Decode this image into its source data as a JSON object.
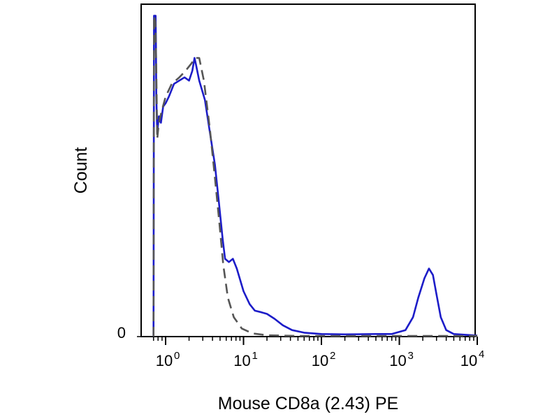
{
  "chart_data": {
    "type": "line",
    "xlabel": "Mouse CD8a (2.43) PE",
    "ylabel": "Count",
    "x_scale": "log",
    "xlim": [
      0.7,
      10000
    ],
    "ylim": [
      0,
      1
    ],
    "grid": false,
    "legend": "none",
    "x_ticks": [
      {
        "base": "10",
        "exp": "0",
        "value": 1
      },
      {
        "base": "10",
        "exp": "1",
        "value": 10
      },
      {
        "base": "10",
        "exp": "2",
        "value": 100
      },
      {
        "base": "10",
        "exp": "3",
        "value": 1000
      },
      {
        "base": "10",
        "exp": "4",
        "value": 10000
      }
    ],
    "y_ticks": [
      {
        "label": "0",
        "value": 0
      }
    ],
    "series": [
      {
        "style": "solid",
        "color": "#1c1cc8",
        "points": [
          [
            0.7,
            0.0
          ],
          [
            0.71,
            0.99
          ],
          [
            0.745,
            0.99
          ],
          [
            0.75,
            0.92
          ],
          [
            0.76,
            0.74
          ],
          [
            0.78,
            0.63
          ],
          [
            0.82,
            0.68
          ],
          [
            0.87,
            0.66
          ],
          [
            0.93,
            0.71
          ],
          [
            1.0,
            0.72
          ],
          [
            1.1,
            0.74
          ],
          [
            1.28,
            0.78
          ],
          [
            1.5,
            0.79
          ],
          [
            1.75,
            0.8
          ],
          [
            2.0,
            0.79
          ],
          [
            2.2,
            0.82
          ],
          [
            2.35,
            0.86
          ],
          [
            2.45,
            0.84
          ],
          [
            2.7,
            0.79
          ],
          [
            3.2,
            0.73
          ],
          [
            3.7,
            0.63
          ],
          [
            4.3,
            0.53
          ],
          [
            4.8,
            0.42
          ],
          [
            5.4,
            0.3
          ],
          [
            5.8,
            0.24
          ],
          [
            6.5,
            0.23
          ],
          [
            7.3,
            0.24
          ],
          [
            8.2,
            0.21
          ],
          [
            10.0,
            0.14
          ],
          [
            12.0,
            0.1
          ],
          [
            14.0,
            0.08
          ],
          [
            17.0,
            0.075
          ],
          [
            20.0,
            0.07
          ],
          [
            25.0,
            0.055
          ],
          [
            32.0,
            0.035
          ],
          [
            42.0,
            0.02
          ],
          [
            60.0,
            0.012
          ],
          [
            100,
            0.008
          ],
          [
            200,
            0.007
          ],
          [
            500,
            0.008
          ],
          [
            800,
            0.008
          ],
          [
            1200,
            0.02
          ],
          [
            1500,
            0.06
          ],
          [
            1750,
            0.12
          ],
          [
            2100,
            0.18
          ],
          [
            2400,
            0.21
          ],
          [
            2700,
            0.19
          ],
          [
            3000,
            0.13
          ],
          [
            3400,
            0.06
          ],
          [
            4000,
            0.02
          ],
          [
            5000,
            0.008
          ],
          [
            10000,
            0.003
          ]
        ]
      },
      {
        "style": "dashed",
        "color": "#555555",
        "points": [
          [
            0.7,
            0.0
          ],
          [
            0.71,
            0.99
          ],
          [
            0.74,
            0.97
          ],
          [
            0.76,
            0.82
          ],
          [
            0.78,
            0.61
          ],
          [
            0.82,
            0.66
          ],
          [
            0.9,
            0.7
          ],
          [
            1.0,
            0.74
          ],
          [
            1.2,
            0.78
          ],
          [
            1.5,
            0.8
          ],
          [
            1.8,
            0.82
          ],
          [
            2.1,
            0.84
          ],
          [
            2.4,
            0.86
          ],
          [
            2.7,
            0.86
          ],
          [
            3.1,
            0.79
          ],
          [
            3.7,
            0.64
          ],
          [
            4.3,
            0.49
          ],
          [
            4.9,
            0.35
          ],
          [
            5.5,
            0.22
          ],
          [
            6.3,
            0.12
          ],
          [
            7.5,
            0.06
          ],
          [
            9.5,
            0.025
          ],
          [
            13.0,
            0.01
          ],
          [
            20.0,
            0.004
          ],
          [
            50.0,
            0.002
          ],
          [
            200,
            0.002
          ],
          [
            2000,
            0.002
          ],
          [
            10000,
            0.002
          ]
        ]
      }
    ]
  }
}
